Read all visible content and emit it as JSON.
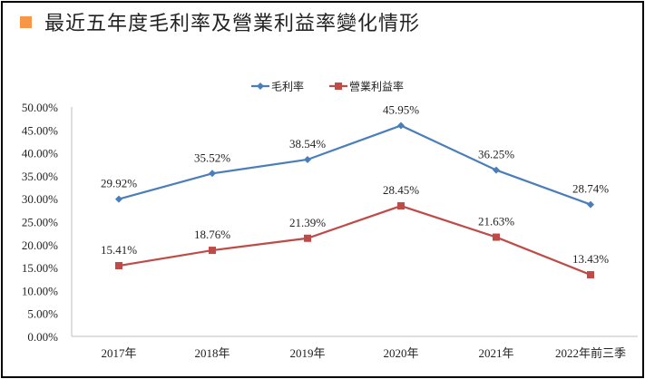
{
  "chart_data": {
    "type": "line",
    "title": "最近五年度毛利率及營業利益率變化情形",
    "categories": [
      "2017年",
      "2018年",
      "2019年",
      "2020年",
      "2021年",
      "2022年前三季"
    ],
    "series": [
      {
        "name": "毛利率",
        "color": "#4a7ebb",
        "marker": "diamond",
        "values": [
          29.92,
          35.52,
          38.54,
          45.95,
          36.25,
          28.74
        ],
        "labels": [
          "29.92%",
          "35.52%",
          "38.54%",
          "45.95%",
          "36.25%",
          "28.74%"
        ]
      },
      {
        "name": "營業利益率",
        "color": "#be4b48",
        "marker": "square",
        "values": [
          15.41,
          18.76,
          21.39,
          28.45,
          21.63,
          13.43
        ],
        "labels": [
          "15.41%",
          "18.76%",
          "21.39%",
          "28.45%",
          "21.63%",
          "13.43%"
        ]
      }
    ],
    "ylim": [
      0,
      50
    ],
    "yticks": [
      "0.00%",
      "5.00%",
      "10.00%",
      "15.00%",
      "20.00%",
      "25.00%",
      "30.00%",
      "35.00%",
      "40.00%",
      "45.00%",
      "50.00%"
    ],
    "grid": false,
    "legend": "top-center",
    "title_marker_color": "#f79646"
  }
}
